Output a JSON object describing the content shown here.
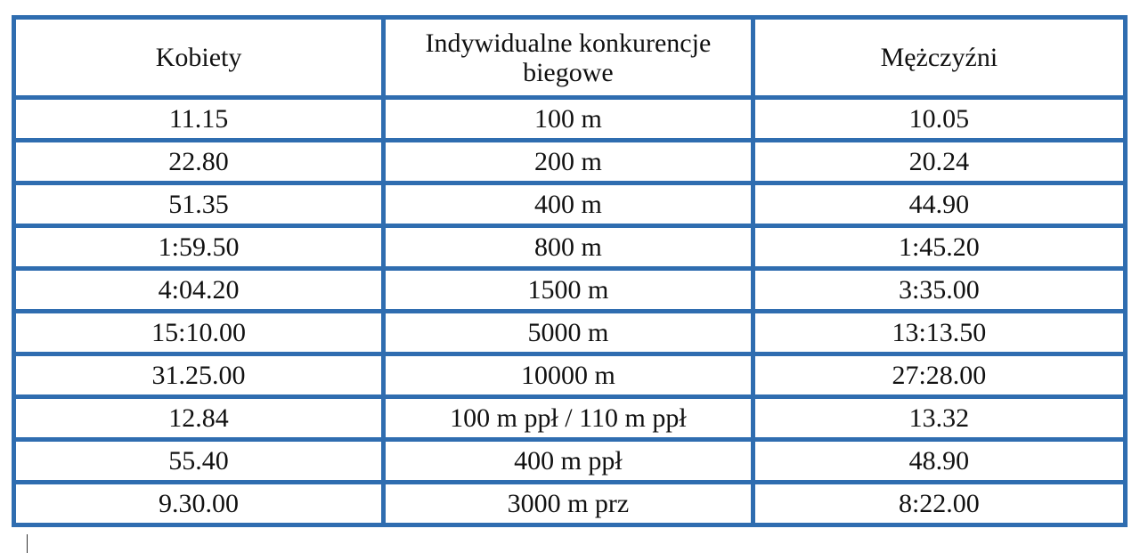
{
  "table": {
    "headers": [
      "Kobiety",
      "Indywidualne konkurencje biegowe",
      "Mężczyźni"
    ],
    "rows": [
      [
        "11.15",
        "100 m",
        "10.05"
      ],
      [
        "22.80",
        "200 m",
        "20.24"
      ],
      [
        "51.35",
        "400 m",
        "44.90"
      ],
      [
        "1:59.50",
        "800 m",
        "1:45.20"
      ],
      [
        "4:04.20",
        "1500 m",
        "3:35.00"
      ],
      [
        "15:10.00",
        "5000 m",
        "13:13.50"
      ],
      [
        "31.25.00",
        "10000 m",
        "27:28.00"
      ],
      [
        "12.84",
        "100 m ppł / 110 m ppł",
        "13.32"
      ],
      [
        "55.40",
        "400 m ppł",
        "48.90"
      ],
      [
        "9.30.00",
        "3000 m prz",
        "8:22.00"
      ]
    ]
  },
  "colors": {
    "border": "#2f6db0"
  }
}
